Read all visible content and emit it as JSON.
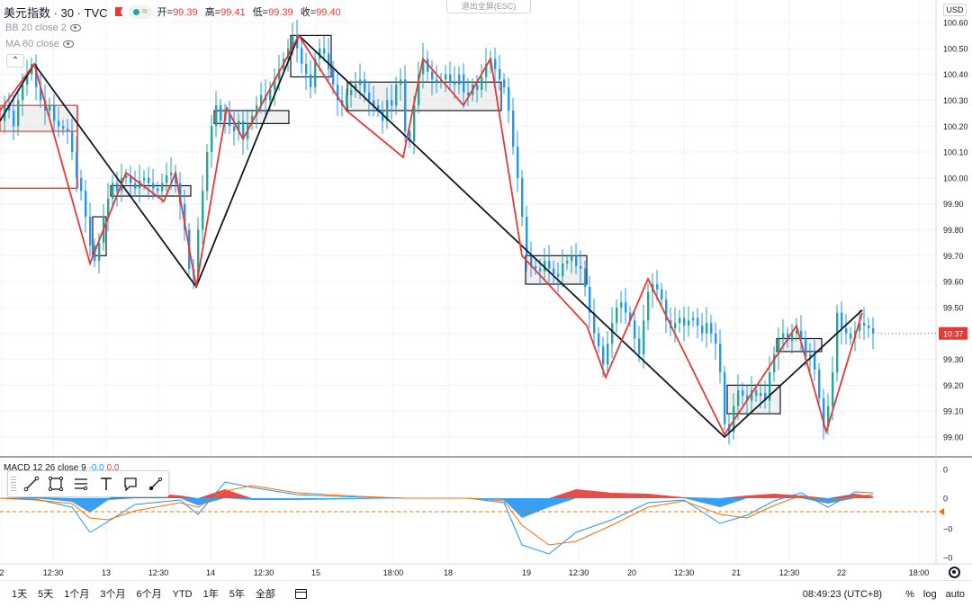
{
  "legend": {
    "symbol": "美元指数 · 30 · TVC",
    "approx": "≈",
    "ohlc": [
      {
        "label": "开=",
        "value": "99.39"
      },
      {
        "label": "高=",
        "value": "99.41"
      },
      {
        "label": "低=",
        "value": "99.39"
      },
      {
        "label": "收=",
        "value": "99.40"
      }
    ]
  },
  "indicators": [
    {
      "label": "BB 20 close 2"
    },
    {
      "label": "MA 60 close"
    }
  ],
  "exit_fullscreen": "退出全屏(ESC)",
  "currency": "USD",
  "price_axis": {
    "ticks": [
      "100.60",
      "100.50",
      "100.40",
      "100.30",
      "100.20",
      "100.10",
      "100.00",
      "99.90",
      "99.80",
      "99.70",
      "99.60",
      "99.50",
      "99.40",
      "99.30",
      "99.20",
      "99.10",
      "99.00"
    ],
    "last_label": "10:37",
    "last_label_color": "#e53935"
  },
  "macd": {
    "label": "MACD 12 26 close 9",
    "values": [
      "-0.0",
      "0.0"
    ],
    "ticks": [
      "0",
      "0",
      "−0",
      "−0"
    ]
  },
  "time_axis": {
    "ticks": [
      "2",
      "12:30",
      "13",
      "12:30",
      "14",
      "12:30",
      "15",
      "18:00",
      "18",
      "19",
      "12:30",
      "20",
      "12:30",
      "21",
      "12:30",
      "22",
      "18:00"
    ]
  },
  "toolbar": {
    "tools": [
      {
        "name": "trend-line-icon"
      },
      {
        "name": "rectangle-icon"
      },
      {
        "name": "parallel-channel-icon"
      },
      {
        "name": "text-icon"
      },
      {
        "name": "callout-icon"
      },
      {
        "name": "brush-icon"
      }
    ]
  },
  "bottom_bar": {
    "ranges": [
      "1天",
      "5天",
      "1个月",
      "3个月",
      "6个月",
      "YTD",
      "1年",
      "5年",
      "全部"
    ],
    "clock": "08:49:23 (UTC+8)",
    "percent": "%",
    "log": "log",
    "auto": "auto"
  },
  "colors": {
    "up": "#26a69a",
    "down": "#2196f3",
    "zigzag_red": "#e53935",
    "zigzag_black": "#131722",
    "macd_line": "#2196f3",
    "signal_line": "#ff6d00",
    "hist_pos": "#e53935",
    "hist_neg": "#2196f3"
  },
  "chart_data": {
    "type": "candlestick",
    "symbol": "美元指数",
    "interval": "30",
    "y_range": [
      98.95,
      100.65
    ],
    "close_price": [
      [
        0,
        100.22
      ],
      [
        5,
        100.28
      ],
      [
        10,
        100.26
      ],
      [
        15,
        100.2
      ],
      [
        20,
        100.3
      ],
      [
        25,
        100.36
      ],
      [
        30,
        100.4
      ],
      [
        35,
        100.44
      ],
      [
        40,
        100.35
      ],
      [
        45,
        100.3
      ],
      [
        50,
        100.26
      ],
      [
        55,
        100.28
      ],
      [
        60,
        100.22
      ],
      [
        65,
        100.2
      ],
      [
        70,
        100.19
      ],
      [
        75,
        100.18
      ],
      [
        80,
        100.1
      ],
      [
        85,
        100.0
      ],
      [
        90,
        99.95
      ],
      [
        95,
        99.85
      ],
      [
        100,
        99.74
      ],
      [
        105,
        99.68
      ],
      [
        110,
        99.75
      ],
      [
        115,
        99.85
      ],
      [
        120,
        99.92
      ],
      [
        125,
        99.98
      ],
      [
        130,
        99.95
      ],
      [
        135,
        100.0
      ],
      [
        140,
        100.01
      ],
      [
        145,
        99.98
      ],
      [
        150,
        99.96
      ],
      [
        155,
        99.99
      ],
      [
        160,
        100.0
      ],
      [
        165,
        99.98
      ],
      [
        170,
        99.96
      ],
      [
        175,
        99.95
      ],
      [
        180,
        99.98
      ],
      [
        185,
        100.01
      ],
      [
        190,
        100.02
      ],
      [
        195,
        99.98
      ],
      [
        200,
        99.9
      ],
      [
        205,
        99.8
      ],
      [
        210,
        99.65
      ],
      [
        215,
        99.62
      ],
      [
        220,
        99.8
      ],
      [
        225,
        99.95
      ],
      [
        230,
        100.1
      ],
      [
        235,
        100.2
      ],
      [
        240,
        100.28
      ],
      [
        245,
        100.22
      ],
      [
        250,
        100.25
      ],
      [
        255,
        100.2
      ],
      [
        260,
        100.18
      ],
      [
        265,
        100.22
      ],
      [
        270,
        100.15
      ],
      [
        275,
        100.21
      ],
      [
        280,
        100.24
      ],
      [
        285,
        100.28
      ],
      [
        290,
        100.32
      ],
      [
        295,
        100.3
      ],
      [
        300,
        100.34
      ],
      [
        305,
        100.38
      ],
      [
        310,
        100.42
      ],
      [
        315,
        100.46
      ],
      [
        320,
        100.5
      ],
      [
        325,
        100.55
      ],
      [
        330,
        100.5
      ],
      [
        335,
        100.44
      ],
      [
        340,
        100.4
      ],
      [
        345,
        100.35
      ],
      [
        350,
        100.46
      ],
      [
        355,
        100.5
      ],
      [
        360,
        100.48
      ],
      [
        365,
        100.42
      ],
      [
        370,
        100.36
      ],
      [
        375,
        100.3
      ],
      [
        380,
        100.28
      ],
      [
        385,
        100.32
      ],
      [
        390,
        100.34
      ],
      [
        395,
        100.36
      ],
      [
        400,
        100.38
      ],
      [
        405,
        100.33
      ],
      [
        410,
        100.3
      ],
      [
        415,
        100.28
      ],
      [
        420,
        100.26
      ],
      [
        425,
        100.22
      ],
      [
        430,
        100.3
      ],
      [
        435,
        100.28
      ],
      [
        440,
        100.36
      ],
      [
        445,
        100.38
      ],
      [
        450,
        100.18
      ],
      [
        455,
        100.14
      ],
      [
        460,
        100.28
      ],
      [
        465,
        100.4
      ],
      [
        470,
        100.46
      ],
      [
        475,
        100.41
      ],
      [
        480,
        100.38
      ],
      [
        485,
        100.37
      ],
      [
        490,
        100.38
      ],
      [
        495,
        100.4
      ],
      [
        500,
        100.37
      ],
      [
        505,
        100.36
      ],
      [
        510,
        100.4
      ],
      [
        515,
        100.33
      ],
      [
        520,
        100.32
      ],
      [
        525,
        100.36
      ],
      [
        530,
        100.34
      ],
      [
        535,
        100.39
      ],
      [
        540,
        100.44
      ],
      [
        545,
        100.46
      ],
      [
        550,
        100.42
      ],
      [
        555,
        100.38
      ],
      [
        560,
        100.35
      ],
      [
        565,
        100.26
      ],
      [
        570,
        100.12
      ],
      [
        575,
        100.0
      ],
      [
        580,
        99.85
      ],
      [
        585,
        99.7
      ],
      [
        590,
        99.66
      ],
      [
        595,
        99.65
      ],
      [
        600,
        99.64
      ],
      [
        605,
        99.68
      ],
      [
        610,
        99.65
      ],
      [
        615,
        99.63
      ],
      [
        620,
        99.62
      ],
      [
        625,
        99.67
      ],
      [
        630,
        99.68
      ],
      [
        635,
        99.7
      ],
      [
        640,
        99.66
      ],
      [
        645,
        99.65
      ],
      [
        650,
        99.58
      ],
      [
        655,
        99.48
      ],
      [
        660,
        99.4
      ],
      [
        665,
        99.35
      ],
      [
        670,
        99.28
      ],
      [
        675,
        99.36
      ],
      [
        680,
        99.44
      ],
      [
        685,
        99.5
      ],
      [
        690,
        99.52
      ],
      [
        695,
        99.48
      ],
      [
        700,
        99.45
      ],
      [
        705,
        99.38
      ],
      [
        710,
        99.32
      ],
      [
        715,
        99.45
      ],
      [
        720,
        99.56
      ],
      [
        725,
        99.59
      ],
      [
        730,
        99.57
      ],
      [
        735,
        99.53
      ],
      [
        740,
        99.45
      ],
      [
        745,
        99.42
      ],
      [
        750,
        99.44
      ],
      [
        755,
        99.46
      ],
      [
        760,
        99.43
      ],
      [
        765,
        99.45
      ],
      [
        770,
        99.46
      ],
      [
        775,
        99.43
      ],
      [
        780,
        99.4
      ],
      [
        785,
        99.44
      ],
      [
        790,
        99.4
      ],
      [
        795,
        99.36
      ],
      [
        800,
        99.25
      ],
      [
        805,
        99.05
      ],
      [
        810,
        99.02
      ],
      [
        815,
        99.12
      ],
      [
        820,
        99.18
      ],
      [
        825,
        99.16
      ],
      [
        830,
        99.14
      ],
      [
        835,
        99.18
      ],
      [
        840,
        99.16
      ],
      [
        845,
        99.17
      ],
      [
        850,
        99.14
      ],
      [
        855,
        99.25
      ],
      [
        860,
        99.32
      ],
      [
        865,
        99.38
      ],
      [
        870,
        99.4
      ],
      [
        875,
        99.37
      ],
      [
        880,
        99.4
      ],
      [
        885,
        99.41
      ],
      [
        890,
        99.38
      ],
      [
        895,
        99.31
      ],
      [
        900,
        99.32
      ],
      [
        905,
        99.26
      ],
      [
        910,
        99.15
      ],
      [
        915,
        99.04
      ],
      [
        920,
        99.12
      ],
      [
        925,
        99.25
      ],
      [
        930,
        99.48
      ],
      [
        935,
        99.42
      ],
      [
        940,
        99.4
      ],
      [
        945,
        99.38
      ],
      [
        950,
        99.41
      ],
      [
        955,
        99.44
      ],
      [
        960,
        99.43
      ],
      [
        965,
        99.42
      ],
      [
        970,
        99.4
      ]
    ],
    "zigzag_black": [
      [
        0,
        100.22
      ],
      [
        38,
        100.44
      ],
      [
        218,
        99.58
      ],
      [
        332,
        100.55
      ],
      [
        805,
        99.0
      ],
      [
        958,
        99.49
      ]
    ],
    "zigzag_red": [
      [
        0,
        100.26
      ],
      [
        38,
        100.44
      ],
      [
        100,
        99.67
      ],
      [
        140,
        100.02
      ],
      [
        182,
        99.91
      ],
      [
        195,
        100.02
      ],
      [
        218,
        99.58
      ],
      [
        252,
        100.27
      ],
      [
        270,
        100.15
      ],
      [
        332,
        100.55
      ],
      [
        385,
        100.26
      ],
      [
        448,
        100.08
      ],
      [
        470,
        100.46
      ],
      [
        515,
        100.28
      ],
      [
        545,
        100.46
      ],
      [
        580,
        99.7
      ],
      [
        652,
        99.43
      ],
      [
        673,
        99.23
      ],
      [
        720,
        99.61
      ],
      [
        805,
        99.01
      ],
      [
        885,
        99.43
      ],
      [
        918,
        99.02
      ],
      [
        958,
        99.48
      ]
    ],
    "boxes": [
      {
        "x0": 0,
        "x1": 86,
        "y0": 100.18,
        "y1": 100.28,
        "filled": true,
        "stroke": "#e53935"
      },
      {
        "x0": 103,
        "x1": 118,
        "y0": 99.7,
        "y1": 99.85,
        "filled": false,
        "stroke": "#131722"
      },
      {
        "x0": 123,
        "x1": 212,
        "y0": 99.93,
        "y1": 99.97,
        "filled": true,
        "stroke": "#131722"
      },
      {
        "x0": 238,
        "x1": 321,
        "y0": 100.21,
        "y1": 100.26,
        "filled": true,
        "stroke": "#131722"
      },
      {
        "x0": 323,
        "x1": 368,
        "y0": 100.39,
        "y1": 100.55,
        "filled": false,
        "stroke": "#131722"
      },
      {
        "x0": 386,
        "x1": 557,
        "y0": 100.26,
        "y1": 100.37,
        "filled": true,
        "stroke": "#131722"
      },
      {
        "x0": 584,
        "x1": 652,
        "y0": 99.59,
        "y1": 99.7,
        "filled": true,
        "stroke": "#131722"
      },
      {
        "x0": 808,
        "x1": 867,
        "y0": 99.09,
        "y1": 99.2,
        "filled": true,
        "stroke": "#131722"
      },
      {
        "x0": 863,
        "x1": 913,
        "y0": 99.33,
        "y1": 99.38,
        "filled": true,
        "stroke": "#131722"
      }
    ],
    "red_ray_level": 99.96,
    "macd_series": {
      "macd": [
        [
          0,
          0.0
        ],
        [
          40,
          -0.01
        ],
        [
          80,
          -0.1
        ],
        [
          100,
          -0.38
        ],
        [
          120,
          -0.26
        ],
        [
          150,
          -0.07
        ],
        [
          200,
          -0.02
        ],
        [
          220,
          -0.18
        ],
        [
          250,
          0.18
        ],
        [
          280,
          0.12
        ],
        [
          330,
          0.04
        ],
        [
          400,
          0.01
        ],
        [
          450,
          0.0
        ],
        [
          520,
          0.0
        ],
        [
          560,
          -0.05
        ],
        [
          580,
          -0.52
        ],
        [
          610,
          -0.62
        ],
        [
          640,
          -0.38
        ],
        [
          680,
          -0.24
        ],
        [
          720,
          -0.05
        ],
        [
          760,
          -0.02
        ],
        [
          800,
          -0.28
        ],
        [
          830,
          -0.19
        ],
        [
          860,
          -0.03
        ],
        [
          890,
          0.06
        ],
        [
          920,
          -0.1
        ],
        [
          950,
          0.07
        ],
        [
          970,
          0.06
        ]
      ],
      "signal": [
        [
          0,
          0.0
        ],
        [
          40,
          -0.02
        ],
        [
          80,
          -0.06
        ],
        [
          100,
          -0.22
        ],
        [
          120,
          -0.24
        ],
        [
          150,
          -0.14
        ],
        [
          200,
          -0.05
        ],
        [
          220,
          -0.1
        ],
        [
          250,
          0.08
        ],
        [
          280,
          0.14
        ],
        [
          330,
          0.06
        ],
        [
          400,
          0.02
        ],
        [
          450,
          0.0
        ],
        [
          520,
          0.0
        ],
        [
          560,
          -0.03
        ],
        [
          580,
          -0.3
        ],
        [
          610,
          -0.52
        ],
        [
          640,
          -0.48
        ],
        [
          680,
          -0.3
        ],
        [
          720,
          -0.1
        ],
        [
          760,
          -0.03
        ],
        [
          800,
          -0.18
        ],
        [
          830,
          -0.22
        ],
        [
          860,
          -0.08
        ],
        [
          890,
          0.03
        ],
        [
          920,
          -0.04
        ],
        [
          950,
          0.02
        ],
        [
          970,
          0.04
        ]
      ],
      "histogram": [
        [
          0,
          0.0
        ],
        [
          40,
          0.01
        ],
        [
          80,
          -0.04
        ],
        [
          100,
          -0.16
        ],
        [
          120,
          -0.02
        ],
        [
          150,
          0.07
        ],
        [
          200,
          0.03
        ],
        [
          220,
          -0.08
        ],
        [
          250,
          0.1
        ],
        [
          280,
          -0.02
        ],
        [
          330,
          -0.02
        ],
        [
          400,
          -0.01
        ],
        [
          450,
          0.0
        ],
        [
          520,
          0.0
        ],
        [
          560,
          -0.02
        ],
        [
          580,
          -0.22
        ],
        [
          610,
          -0.1
        ],
        [
          640,
          0.1
        ],
        [
          680,
          0.06
        ],
        [
          720,
          0.05
        ],
        [
          760,
          0.01
        ],
        [
          800,
          -0.1
        ],
        [
          830,
          0.03
        ],
        [
          860,
          0.05
        ],
        [
          890,
          0.03
        ],
        [
          920,
          -0.06
        ],
        [
          950,
          0.05
        ],
        [
          970,
          0.02
        ]
      ]
    }
  }
}
